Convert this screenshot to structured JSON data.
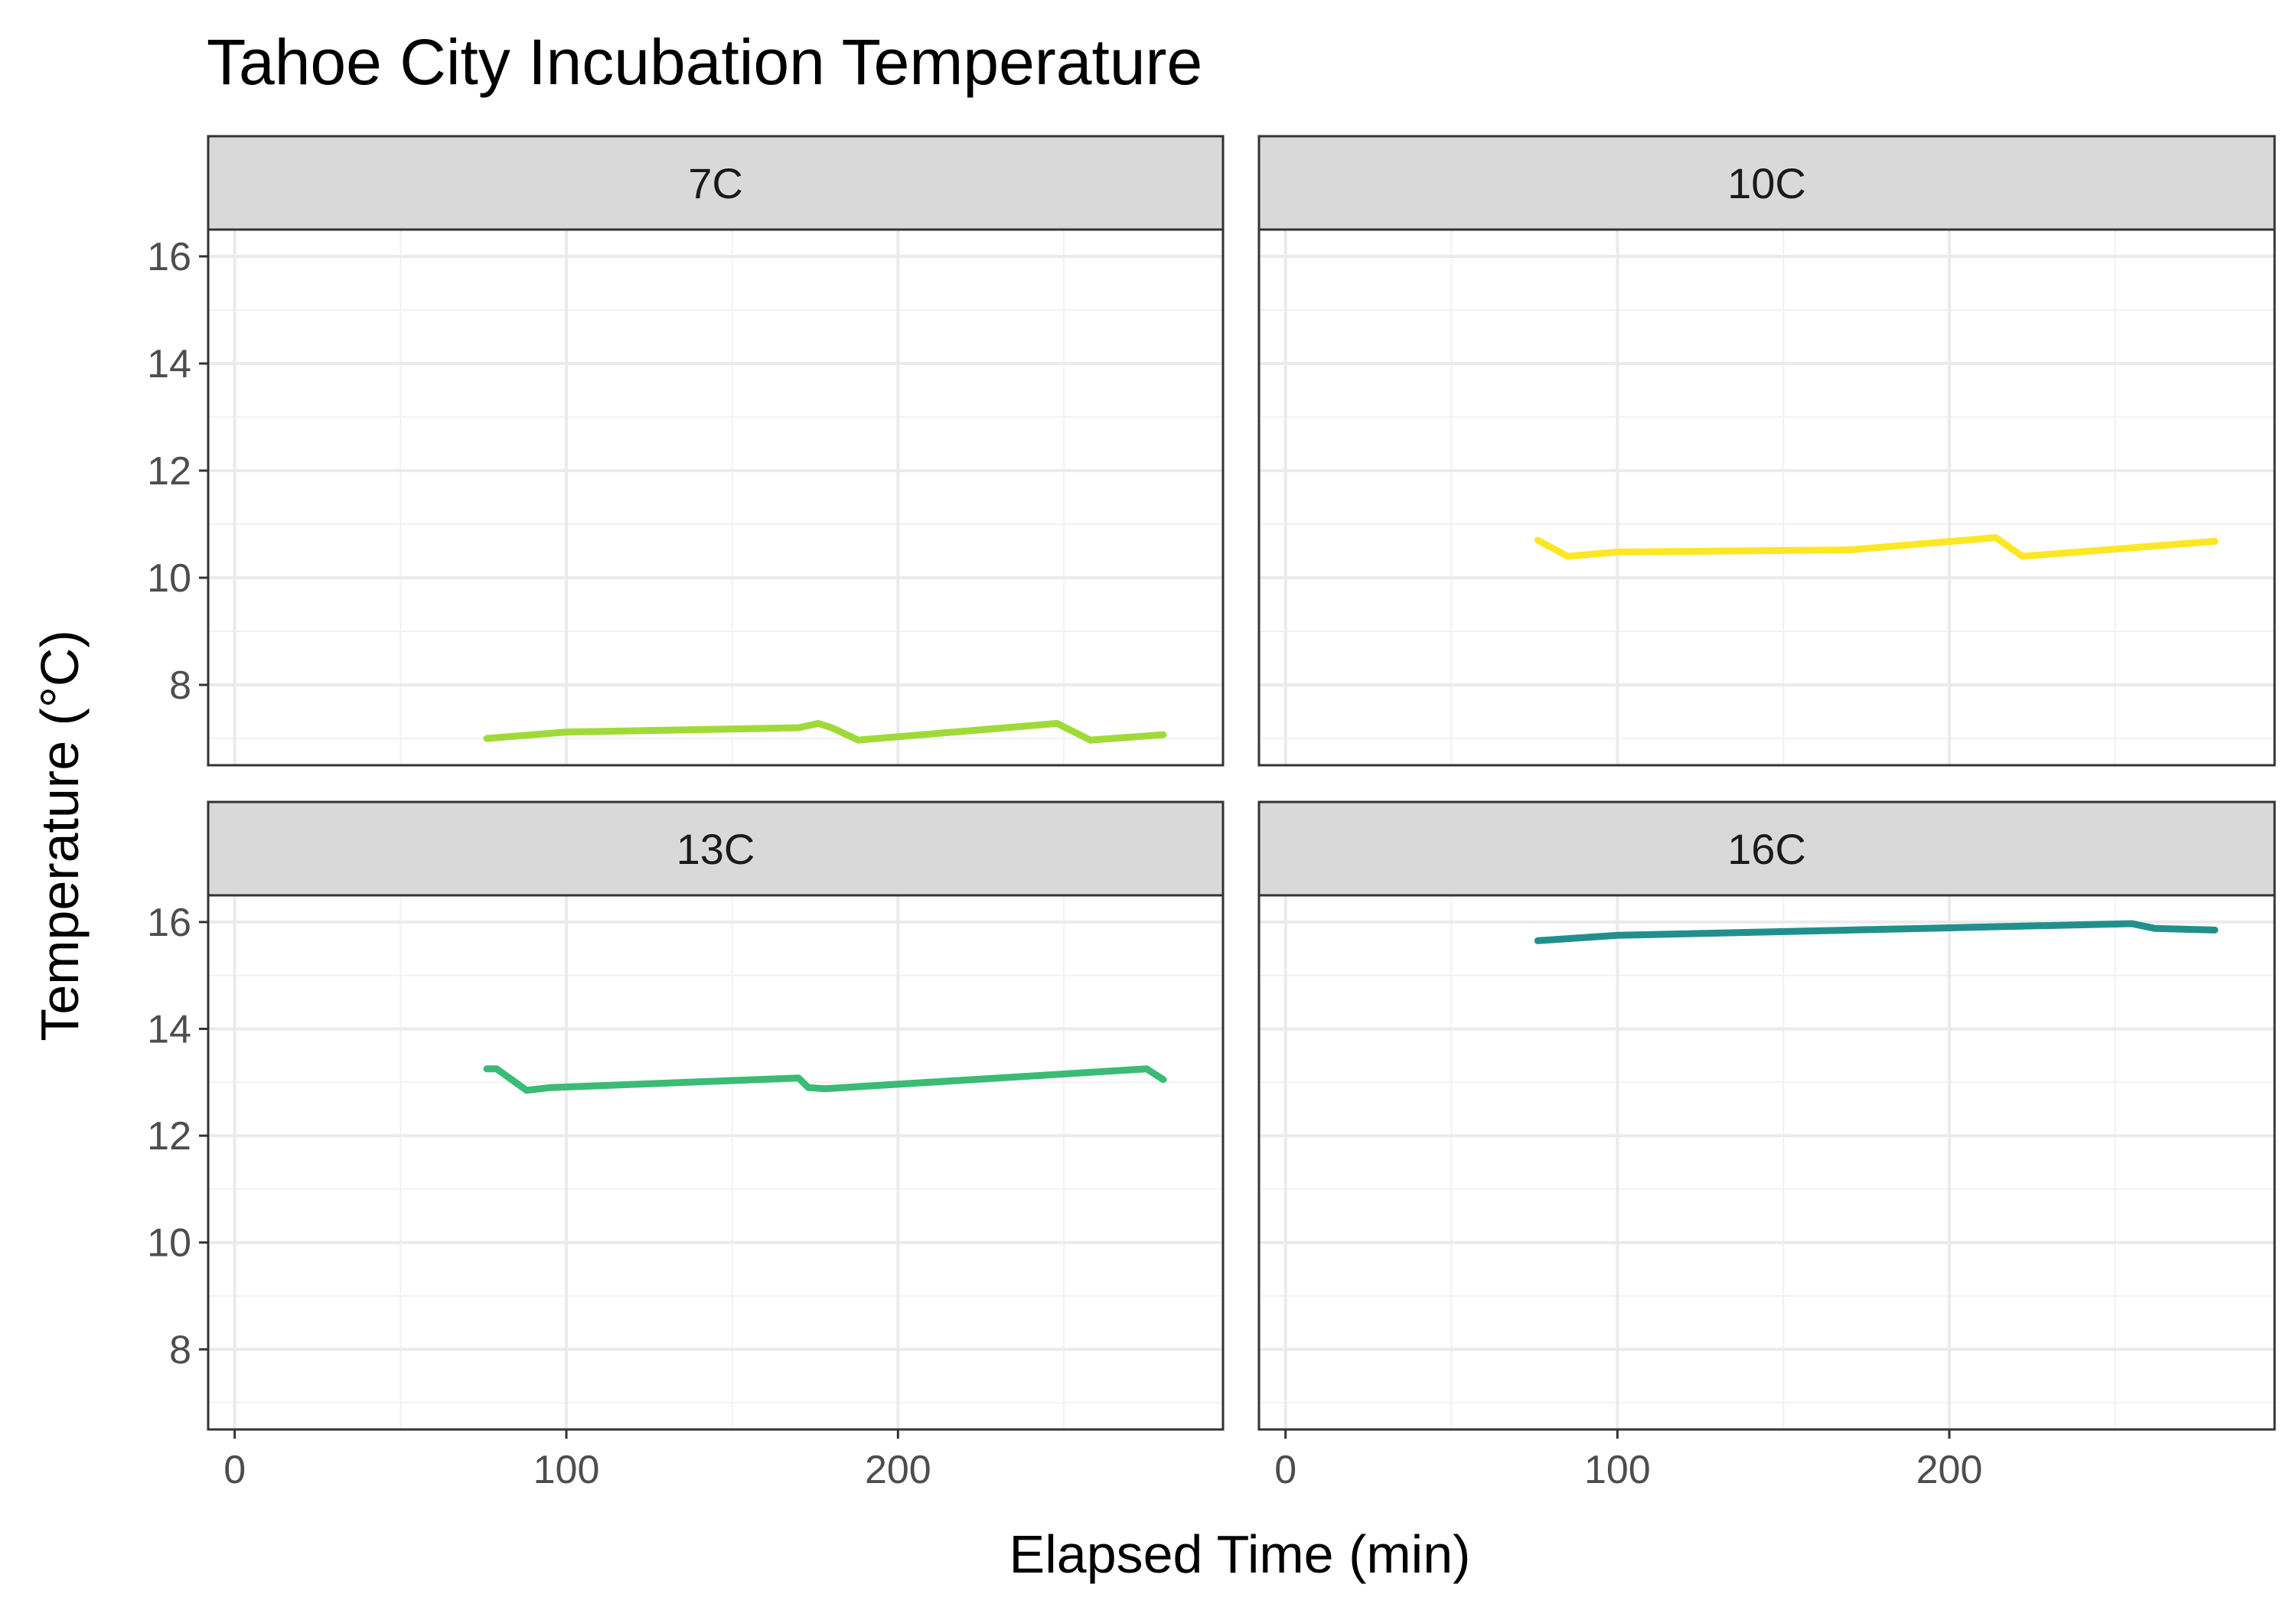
{
  "chart_data": {
    "type": "line",
    "title": "Tahoe City Incubation Temperature",
    "xlabel": "Elapsed Time (min)",
    "ylabel": "Temperature (°C)",
    "xlim": [
      -8,
      298
    ],
    "ylim": [
      6.5,
      16.5
    ],
    "x_ticks": [
      0,
      100,
      200
    ],
    "y_ticks": [
      8,
      10,
      12,
      14,
      16
    ],
    "grid": true,
    "legend": "none",
    "facets": [
      {
        "label": "7C",
        "color": "#a0da39",
        "x": [
          76,
          100,
          170,
          176,
          180,
          188,
          248,
          258,
          280
        ],
        "y": [
          7.0,
          7.12,
          7.2,
          7.28,
          7.2,
          6.97,
          7.28,
          6.97,
          7.07
        ]
      },
      {
        "label": "10C",
        "color": "#fde725",
        "x": [
          76,
          85,
          100,
          170,
          214,
          222,
          280
        ],
        "y": [
          10.7,
          10.4,
          10.48,
          10.52,
          10.75,
          10.4,
          10.68
        ]
      },
      {
        "label": "13C",
        "color": "#3bbb75",
        "x": [
          76,
          79,
          88,
          95,
          170,
          173,
          178,
          275,
          280
        ],
        "y": [
          13.25,
          13.25,
          12.85,
          12.9,
          13.08,
          12.9,
          12.88,
          13.25,
          13.05
        ]
      },
      {
        "label": "16C",
        "color": "#21908d",
        "x": [
          76,
          100,
          170,
          255,
          262,
          280
        ],
        "y": [
          15.65,
          15.75,
          15.85,
          15.97,
          15.88,
          15.85
        ]
      }
    ]
  }
}
